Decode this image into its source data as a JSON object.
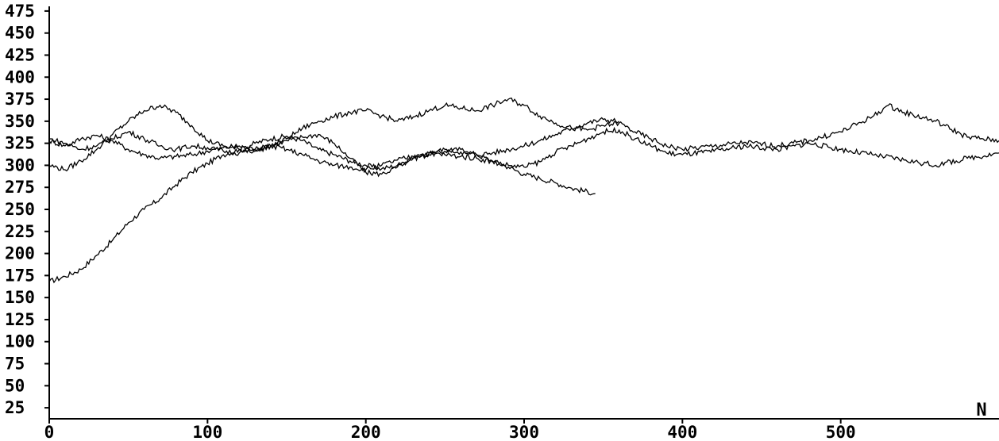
{
  "chart_data": {
    "type": "line",
    "title": "",
    "xlabel": "N",
    "ylabel": "",
    "xlim": [
      0,
      600
    ],
    "ylim": [
      12.5,
      487.5
    ],
    "x_ticks": [
      0,
      100,
      200,
      300,
      400,
      500
    ],
    "x_tick_labels": [
      "0",
      "100",
      "200",
      "300",
      "400",
      "500"
    ],
    "y_ticks": [
      25,
      50,
      75,
      100,
      125,
      150,
      175,
      200,
      225,
      250,
      275,
      300,
      325,
      350,
      375,
      400,
      425,
      450,
      475
    ],
    "y_tick_labels": [
      "25",
      "50",
      "75",
      "100",
      "125",
      "150",
      "175",
      "200",
      "225",
      "250",
      "275",
      "300",
      "325",
      "350",
      "375",
      "400",
      "425",
      "450",
      "475"
    ],
    "grid": false,
    "legend": "none",
    "line_color": "#000000",
    "series": [
      {
        "x": [
          0,
          10,
          20,
          30,
          40,
          50,
          60,
          70,
          80,
          90,
          100,
          110,
          120,
          130,
          140,
          150,
          160,
          170,
          180,
          190,
          200,
          210,
          220,
          230,
          240,
          250,
          260,
          270,
          280,
          290,
          300,
          310,
          320,
          330,
          345
        ],
        "values": [
          168,
          174,
          182,
          198,
          215,
          235,
          250,
          262,
          278,
          292,
          302,
          312,
          318,
          325,
          330,
          333,
          328,
          318,
          312,
          305,
          300,
          296,
          300,
          308,
          312,
          316,
          318,
          312,
          305,
          298,
          290,
          285,
          280,
          274,
          268
        ]
      },
      {
        "x": [
          0,
          10,
          20,
          30,
          40,
          50,
          60,
          70,
          80,
          90,
          100,
          110,
          120,
          130,
          140,
          150,
          160,
          170,
          180,
          190,
          200,
          210,
          220,
          230,
          240,
          250,
          260,
          270,
          280,
          290,
          300,
          310,
          320,
          330,
          340,
          350,
          360
        ],
        "values": [
          328,
          322,
          330,
          334,
          328,
          318,
          312,
          308,
          310,
          312,
          316,
          320,
          322,
          318,
          322,
          328,
          332,
          335,
          325,
          308,
          292,
          290,
          298,
          308,
          314,
          318,
          315,
          312,
          314,
          318,
          322,
          328,
          335,
          342,
          348,
          352,
          350
        ]
      },
      {
        "x": [
          0,
          10,
          20,
          30,
          40,
          50,
          60,
          70,
          80,
          90,
          100,
          110,
          120,
          130,
          140,
          150,
          160,
          170,
          180,
          190,
          200,
          210,
          220,
          230,
          240,
          250,
          260,
          270,
          280,
          290,
          300,
          310,
          320,
          330,
          340,
          350,
          360,
          370,
          380,
          390,
          400,
          420,
          440,
          460,
          480,
          500,
          520,
          530,
          540,
          560,
          580,
          600
        ],
        "values": [
          300,
          295,
          305,
          318,
          335,
          350,
          362,
          368,
          360,
          345,
          328,
          322,
          318,
          316,
          322,
          330,
          342,
          350,
          355,
          360,
          362,
          356,
          350,
          355,
          362,
          368,
          365,
          362,
          368,
          375,
          368,
          356,
          348,
          342,
          340,
          345,
          348,
          338,
          330,
          322,
          318,
          322,
          326,
          322,
          328,
          338,
          355,
          368,
          360,
          350,
          332,
          328
        ]
      },
      {
        "x": [
          0,
          10,
          20,
          30,
          40,
          50,
          60,
          70,
          80,
          90,
          100,
          110,
          120,
          130,
          140,
          150,
          160,
          170,
          180,
          190,
          200,
          210,
          220,
          230,
          240,
          250,
          260,
          270,
          280,
          290,
          300,
          310,
          320,
          330,
          340,
          350,
          360,
          370,
          380,
          390,
          400,
          420,
          440,
          460,
          480,
          500,
          520,
          540,
          560,
          580,
          600
        ],
        "values": [
          330,
          325,
          318,
          322,
          330,
          338,
          330,
          322,
          318,
          322,
          320,
          316,
          314,
          318,
          322,
          318,
          312,
          305,
          300,
          298,
          295,
          300,
          306,
          310,
          314,
          312,
          310,
          308,
          304,
          300,
          298,
          304,
          315,
          322,
          330,
          338,
          340,
          330,
          322,
          314,
          312,
          316,
          322,
          318,
          325,
          318,
          312,
          306,
          300,
          308,
          314
        ]
      }
    ]
  }
}
